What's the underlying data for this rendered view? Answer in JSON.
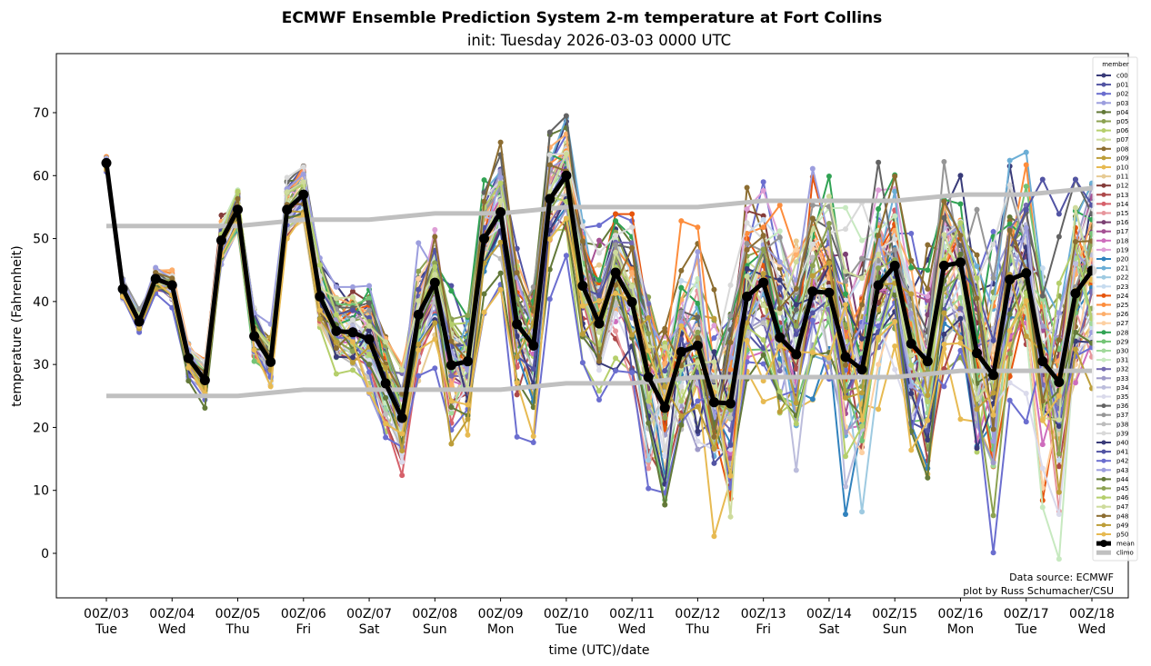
{
  "chart_data": {
    "type": "line",
    "title": "ECMWF Ensemble Prediction System 2-m temperature at Fort Collins",
    "subtitle": "init: Tuesday 2026-03-03 0000 UTC",
    "xlabel": "time (UTC)/date",
    "ylabel": "temperature (Fahrenheit)",
    "ylim": [
      -7,
      79
    ],
    "yticks": [
      0,
      10,
      20,
      30,
      40,
      50,
      60,
      70
    ],
    "x_unit": "hours since init",
    "x_step_hours": 6,
    "xlim_hours": [
      -18,
      378
    ],
    "xticks": [
      {
        "hour": 0,
        "label1": "00Z/03",
        "label2": "Tue"
      },
      {
        "hour": 24,
        "label1": "00Z/04",
        "label2": "Wed"
      },
      {
        "hour": 48,
        "label1": "00Z/05",
        "label2": "Thu"
      },
      {
        "hour": 72,
        "label1": "00Z/06",
        "label2": "Fri"
      },
      {
        "hour": 96,
        "label1": "00Z/07",
        "label2": "Sat"
      },
      {
        "hour": 120,
        "label1": "00Z/08",
        "label2": "Sun"
      },
      {
        "hour": 144,
        "label1": "00Z/09",
        "label2": "Mon"
      },
      {
        "hour": 168,
        "label1": "00Z/10",
        "label2": "Tue"
      },
      {
        "hour": 192,
        "label1": "00Z/11",
        "label2": "Wed"
      },
      {
        "hour": 216,
        "label1": "00Z/12",
        "label2": "Thu"
      },
      {
        "hour": 240,
        "label1": "00Z/13",
        "label2": "Fri"
      },
      {
        "hour": 264,
        "label1": "00Z/14",
        "label2": "Sat"
      },
      {
        "hour": 288,
        "label1": "00Z/15",
        "label2": "Sun"
      },
      {
        "hour": 312,
        "label1": "00Z/16",
        "label2": "Mon"
      },
      {
        "hour": 336,
        "label1": "00Z/17",
        "label2": "Tue"
      },
      {
        "hour": 360,
        "label1": "00Z/18",
        "label2": "Wed"
      }
    ],
    "legend": {
      "title": "member",
      "placement": "right"
    },
    "mean": {
      "name": "mean",
      "color": "#000000",
      "values": [
        62,
        42,
        36.8,
        43.6,
        42.6,
        31,
        27.5,
        49.7,
        54.6,
        34.5,
        30.4,
        54.6,
        57,
        40.8,
        35.3,
        35.1,
        34,
        27,
        21.5,
        37.9,
        43,
        29.9,
        30.5,
        50,
        54.2,
        36.4,
        33,
        56.3,
        60,
        42.5,
        36.5,
        44.6,
        39.9,
        28,
        23.1,
        32,
        33,
        24,
        23.8,
        40.8,
        43,
        34.3,
        31.6,
        41.6,
        41.4,
        31.2,
        29.2,
        42.6,
        45.7,
        33.3,
        30.5,
        45.7,
        46.2,
        31.8,
        28.3,
        43.5,
        44.5,
        30.5,
        27.2,
        41.3,
        44.9
      ]
    },
    "climo": {
      "name": "climo",
      "color": "#c0c0c0",
      "x_step_hours": 24,
      "upper": [
        52,
        52,
        52,
        53,
        53,
        54,
        54,
        55,
        55,
        55,
        56,
        56,
        56,
        57,
        57,
        58
      ],
      "lower": [
        25,
        25,
        25,
        26,
        26,
        26,
        26,
        27,
        27,
        28,
        28,
        28,
        28,
        29,
        29,
        29
      ]
    },
    "members": [
      {
        "name": "c00",
        "color": "#393b79"
      },
      {
        "name": "p01",
        "color": "#5254a3"
      },
      {
        "name": "p02",
        "color": "#6b6ecf"
      },
      {
        "name": "p03",
        "color": "#9c9ede"
      },
      {
        "name": "p04",
        "color": "#637939"
      },
      {
        "name": "p05",
        "color": "#8ca252"
      },
      {
        "name": "p06",
        "color": "#b5cf6b"
      },
      {
        "name": "p07",
        "color": "#cedb9c"
      },
      {
        "name": "p08",
        "color": "#8c6d31"
      },
      {
        "name": "p09",
        "color": "#bd9e39"
      },
      {
        "name": "p10",
        "color": "#e7ba52"
      },
      {
        "name": "p11",
        "color": "#e7cb94"
      },
      {
        "name": "p12",
        "color": "#843c39"
      },
      {
        "name": "p13",
        "color": "#ad494a"
      },
      {
        "name": "p14",
        "color": "#d6616b"
      },
      {
        "name": "p15",
        "color": "#e7969c"
      },
      {
        "name": "p16",
        "color": "#7b4173"
      },
      {
        "name": "p17",
        "color": "#a55194"
      },
      {
        "name": "p18",
        "color": "#ce6dbd"
      },
      {
        "name": "p19",
        "color": "#de9ed6"
      },
      {
        "name": "p20",
        "color": "#3182bd"
      },
      {
        "name": "p21",
        "color": "#6baed6"
      },
      {
        "name": "p22",
        "color": "#9ecae1"
      },
      {
        "name": "p23",
        "color": "#c6dbef"
      },
      {
        "name": "p24",
        "color": "#e6550d"
      },
      {
        "name": "p25",
        "color": "#fd8d3c"
      },
      {
        "name": "p26",
        "color": "#fdae6b"
      },
      {
        "name": "p27",
        "color": "#fdd0a2"
      },
      {
        "name": "p28",
        "color": "#31a354"
      },
      {
        "name": "p29",
        "color": "#74c476"
      },
      {
        "name": "p30",
        "color": "#a1d99b"
      },
      {
        "name": "p31",
        "color": "#c7e9c0"
      },
      {
        "name": "p32",
        "color": "#756bb1"
      },
      {
        "name": "p33",
        "color": "#9e9ac8"
      },
      {
        "name": "p34",
        "color": "#bcbddc"
      },
      {
        "name": "p35",
        "color": "#dadaeb"
      },
      {
        "name": "p36",
        "color": "#636363"
      },
      {
        "name": "p37",
        "color": "#969696"
      },
      {
        "name": "p38",
        "color": "#bdbdbd"
      },
      {
        "name": "p39",
        "color": "#d9d9d9"
      },
      {
        "name": "p40",
        "color": "#393b79"
      },
      {
        "name": "p41",
        "color": "#5254a3"
      },
      {
        "name": "p42",
        "color": "#6b6ecf"
      },
      {
        "name": "p43",
        "color": "#9c9ede"
      },
      {
        "name": "p44",
        "color": "#637939"
      },
      {
        "name": "p45",
        "color": "#8ca252"
      },
      {
        "name": "p46",
        "color": "#b5cf6b"
      },
      {
        "name": "p47",
        "color": "#cedb9c"
      },
      {
        "name": "p48",
        "color": "#8c6d31"
      },
      {
        "name": "p49",
        "color": "#bd9e39"
      },
      {
        "name": "p50",
        "color": "#e7ba52"
      }
    ],
    "member_spread_note": "members scatter around the mean with spread growing from ~2F at init to ~15F by day 9+",
    "annotations": [
      "Data source: ECMWF",
      "plot by Russ Schumacher/CSU"
    ]
  }
}
